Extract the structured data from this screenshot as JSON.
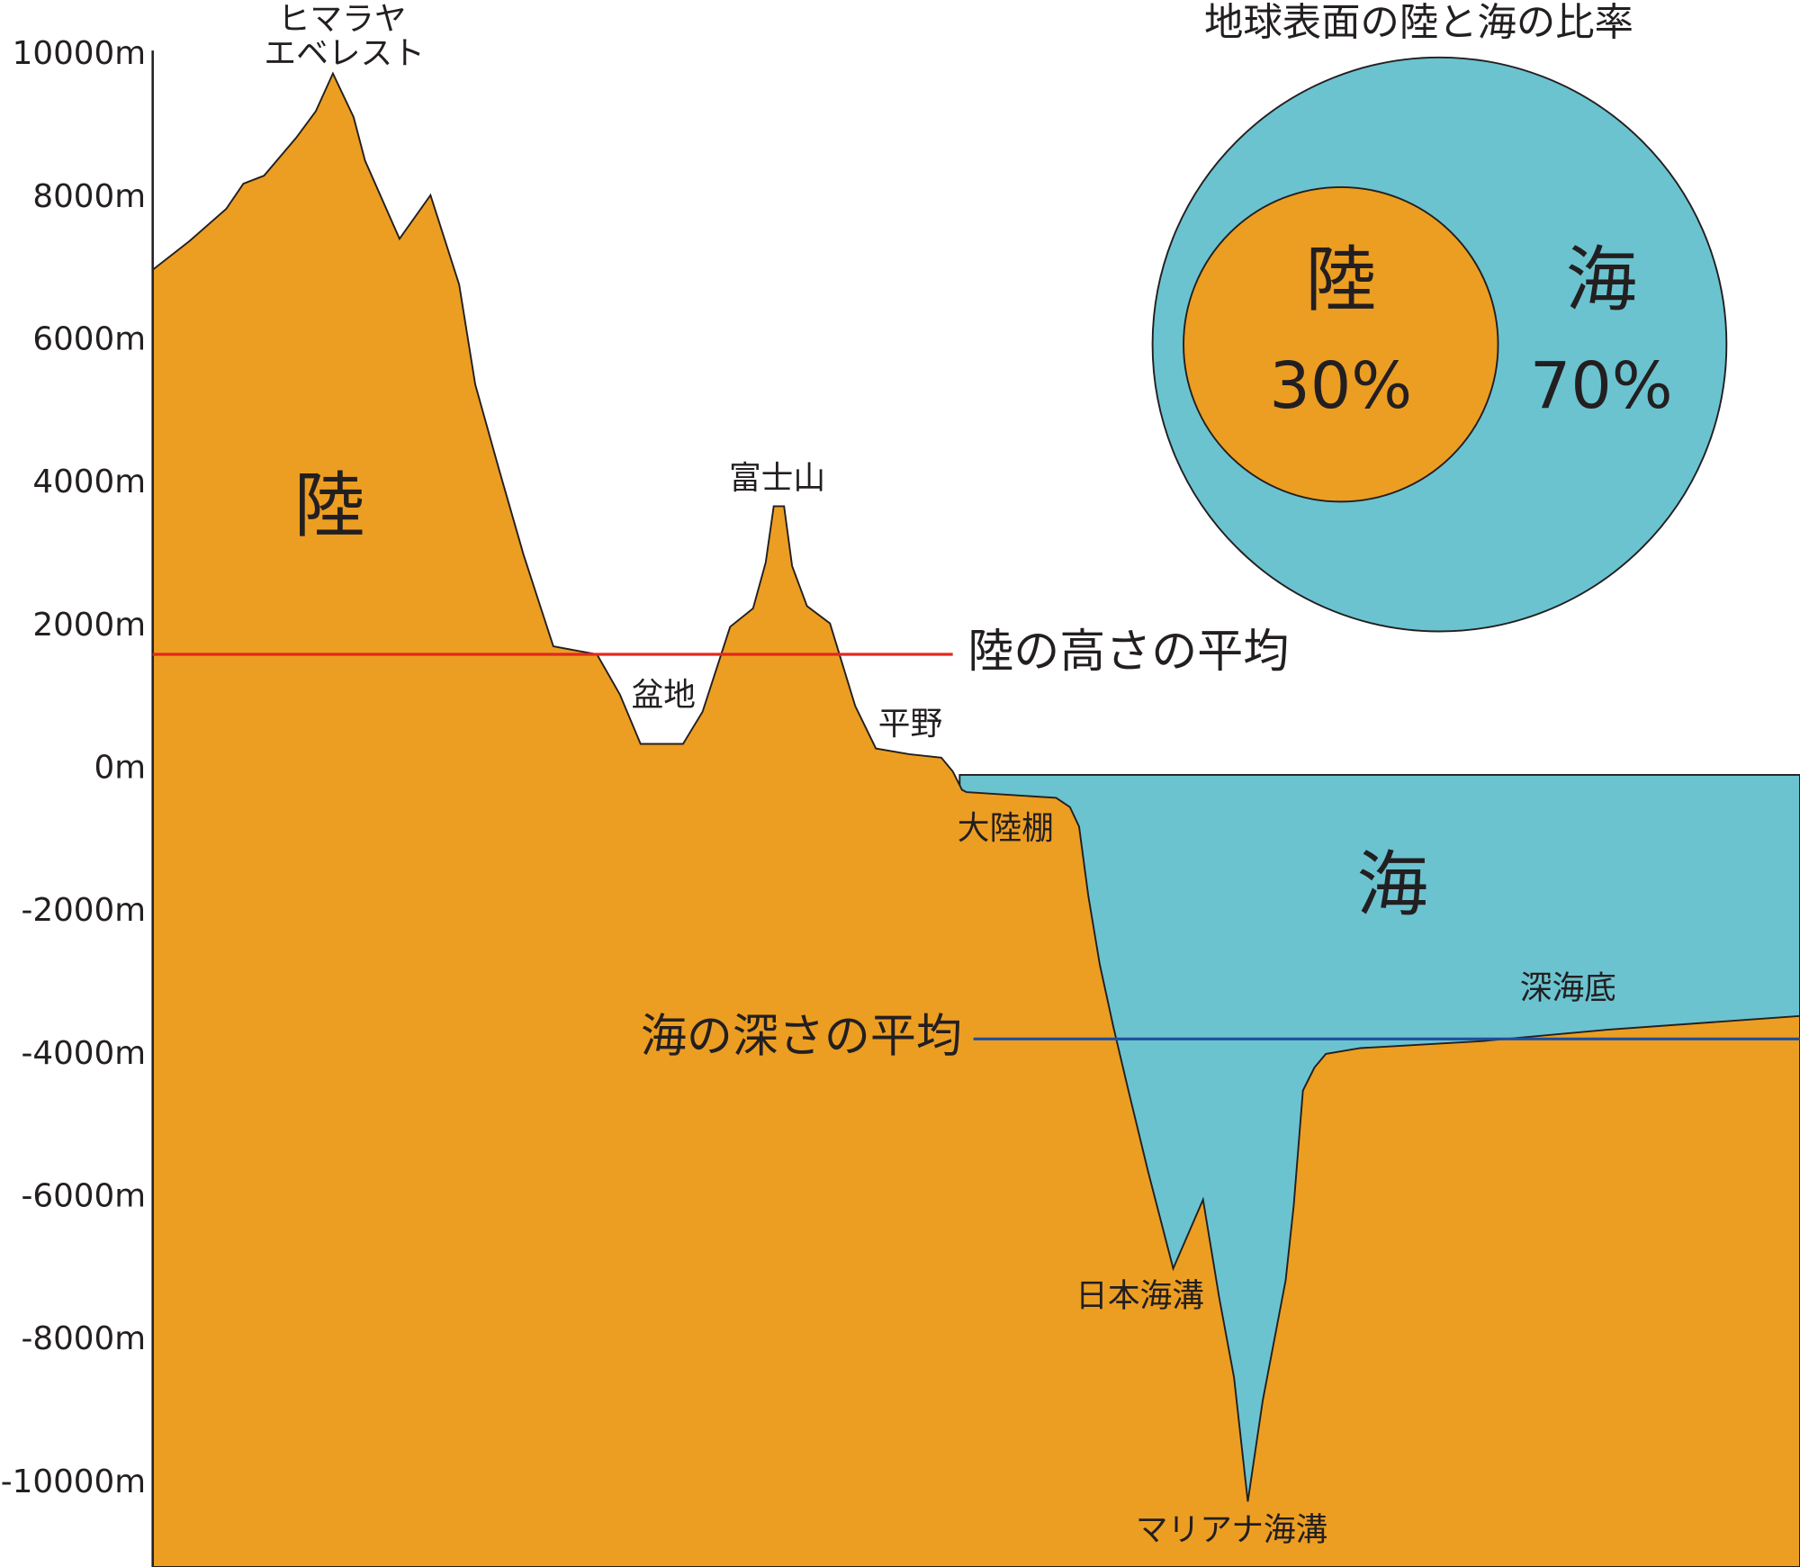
{
  "ratio_chart": {
    "title": "地球表面の陸と海の比率",
    "land": {
      "label": "陸",
      "percent": "30%"
    },
    "sea": {
      "label": "海",
      "percent": "70%"
    }
  },
  "axis": {
    "ticks": [
      "10000m",
      "8000m",
      "6000m",
      "4000m",
      "2000m",
      "0m",
      "-2000m",
      "-4000m",
      "-6000m",
      "-8000m",
      "-10000m"
    ]
  },
  "profile": {
    "land_label": "陸",
    "sea_label": "海",
    "everest": [
      "ヒマラヤ",
      "エベレスト"
    ],
    "fuji": "富士山",
    "basin": "盆地",
    "plain": "平野",
    "shelf": "大陸棚",
    "abyssal": "深海底",
    "japan_trench": "日本海溝",
    "mariana_trench": "マリアナ海溝",
    "land_average": "陸の高さの平均",
    "sea_average": "海の深さの平均"
  }
}
